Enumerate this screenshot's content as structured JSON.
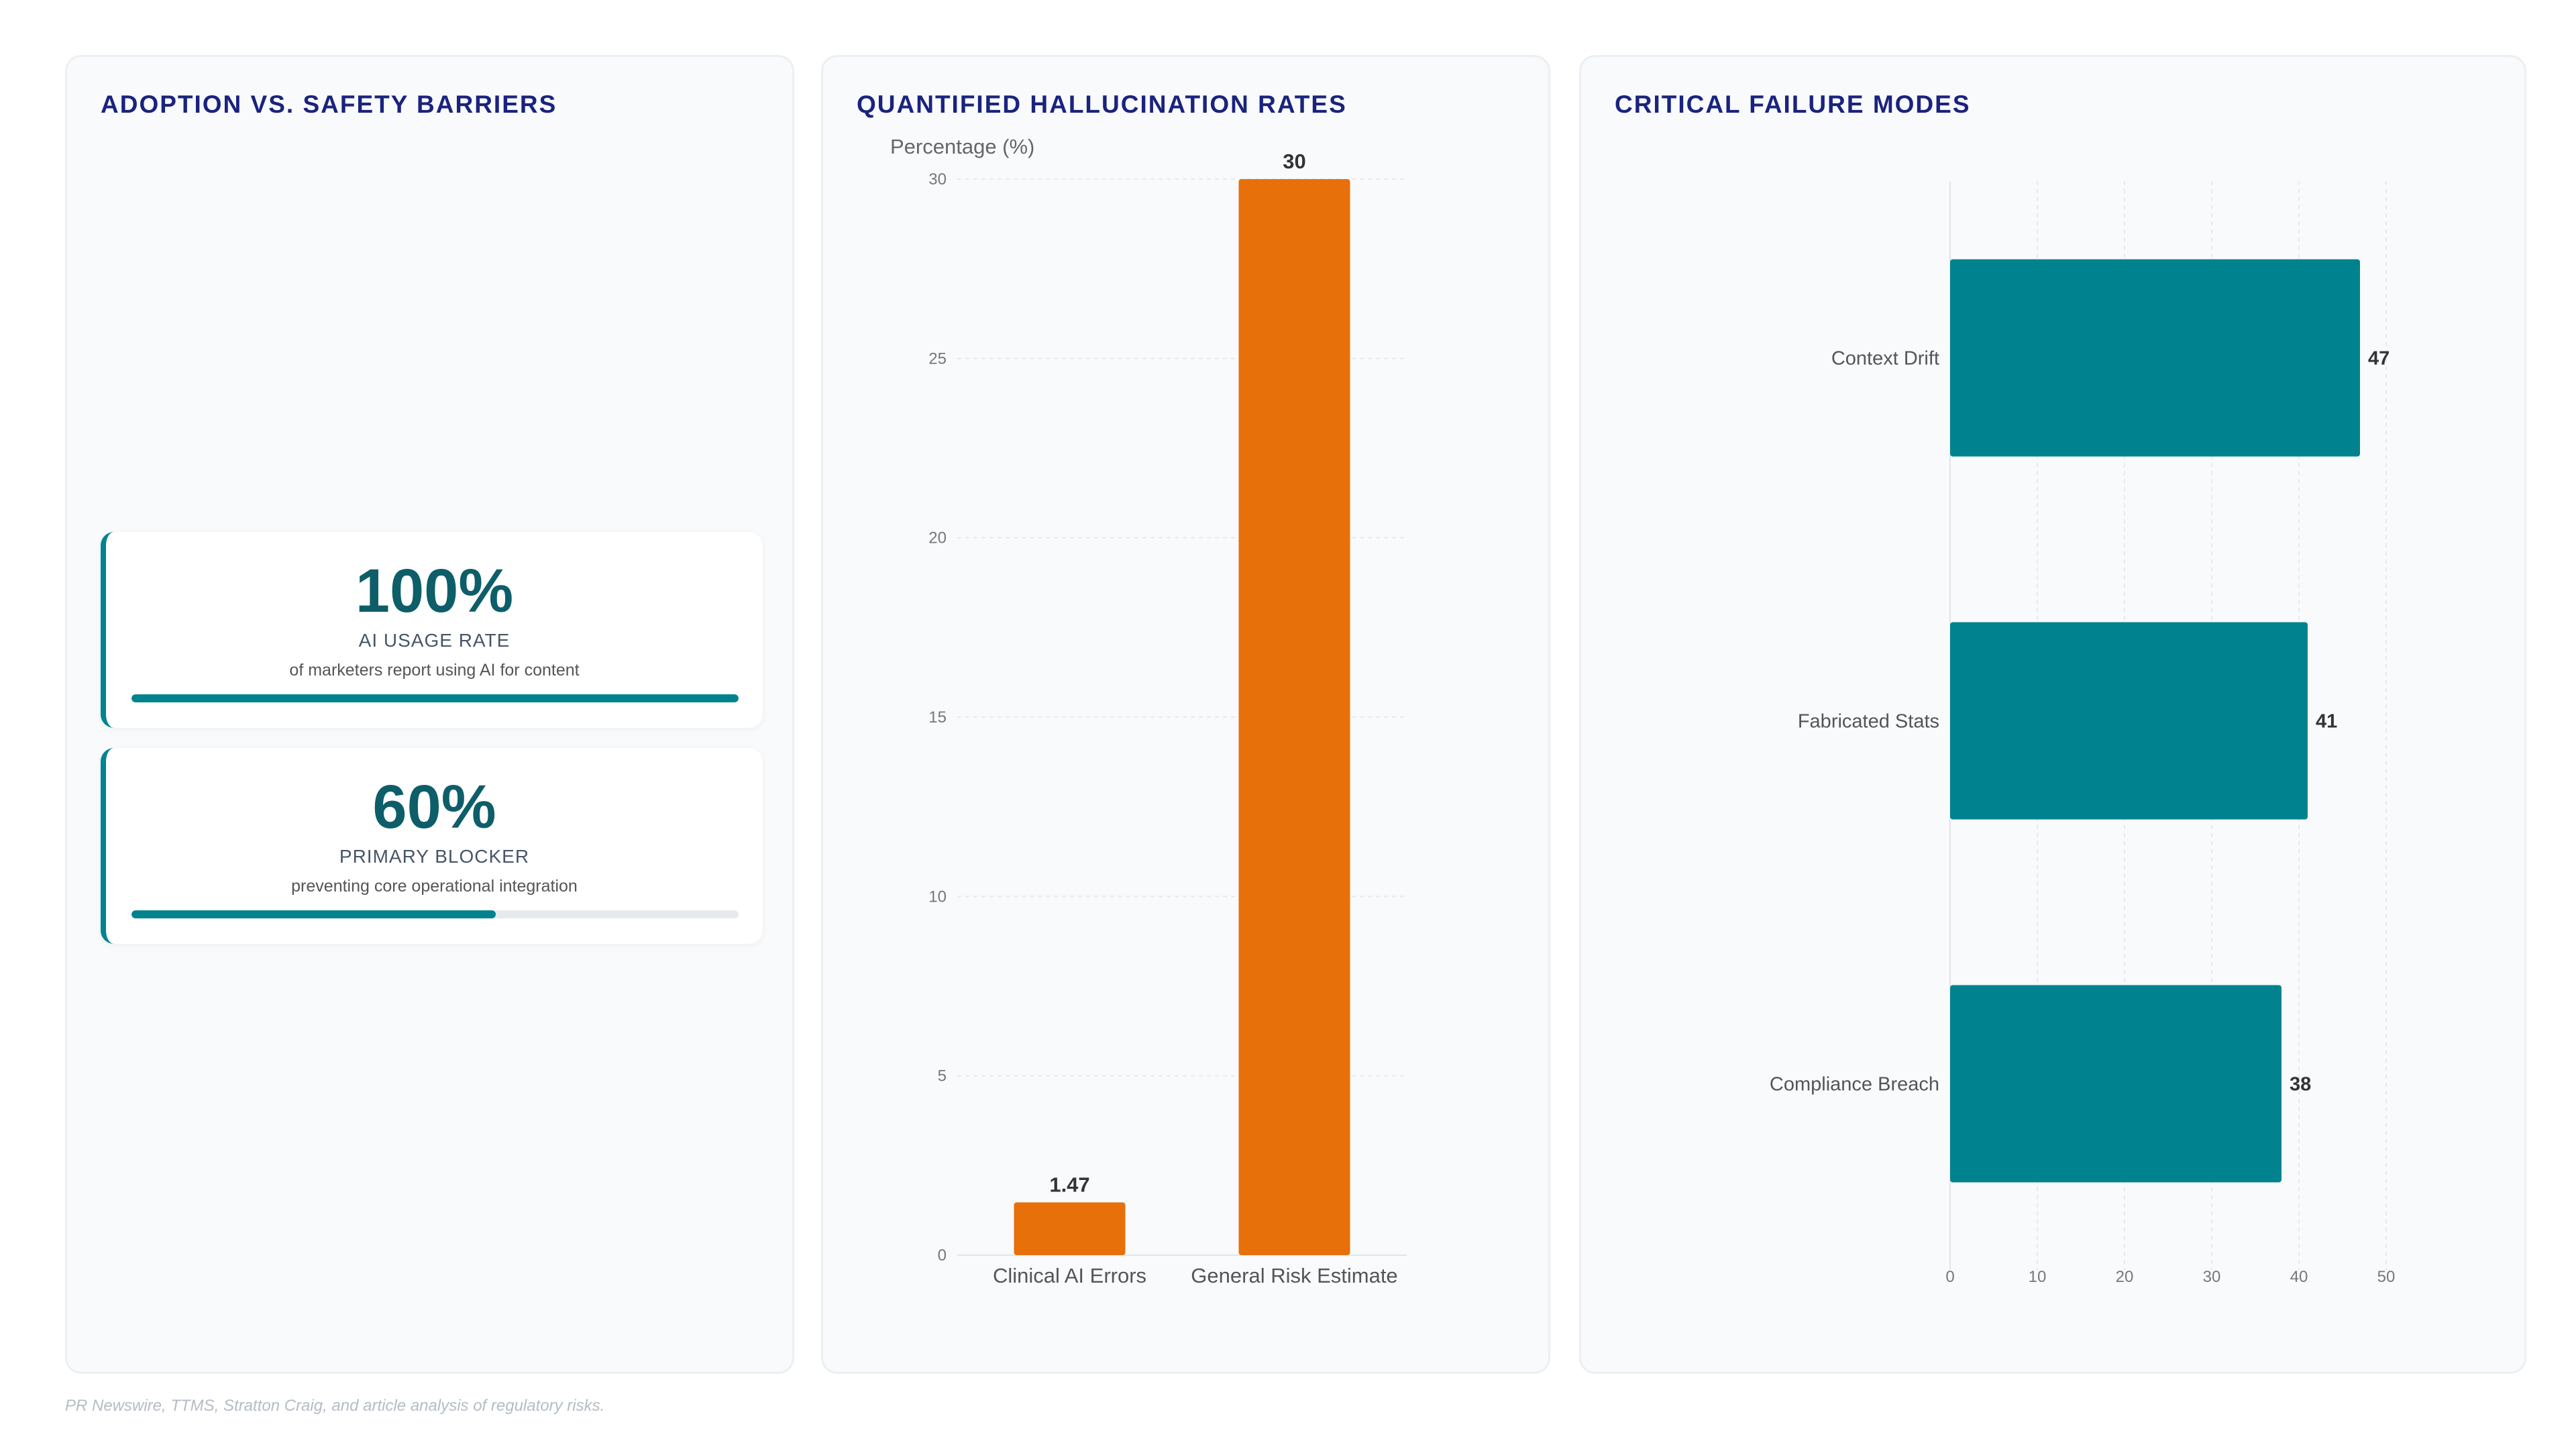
{
  "panels": {
    "adoption": {
      "title": "ADOPTION VS. SAFETY BARRIERS"
    },
    "hallucination": {
      "title": "QUANTIFIED HALLUCINATION RATES"
    },
    "failure": {
      "title": "CRITICAL FAILURE MODES"
    }
  },
  "stats": [
    {
      "value": "100%",
      "label": "AI USAGE RATE",
      "description": "of marketers report using AI for content",
      "progress": 1.0
    },
    {
      "value": "60%",
      "label": "PRIMARY BLOCKER",
      "description": "preventing core operational integration",
      "progress": 0.6
    }
  ],
  "colors": {
    "accent": "#00838f",
    "accent_dark": "#0d5e69",
    "orange": "#e8700a",
    "title": "#1a237e"
  },
  "chart_data": [
    {
      "type": "bar",
      "title": "QUANTIFIED HALLUCINATION RATES",
      "ylabel": "Percentage (%)",
      "categories": [
        "Clinical AI Errors",
        "General Risk Estimate"
      ],
      "values": [
        1.47,
        30
      ],
      "value_labels": [
        "1.47",
        "30"
      ],
      "ylim": [
        0,
        30
      ],
      "yticks": [
        0,
        5,
        10,
        15,
        20,
        25,
        30
      ],
      "color": "#e8700a",
      "grid": true
    },
    {
      "type": "bar",
      "orientation": "horizontal",
      "title": "CRITICAL FAILURE MODES",
      "categories": [
        "Context Drift",
        "Fabricated Stats",
        "Compliance Breach"
      ],
      "values": [
        47,
        41,
        38
      ],
      "xlim": [
        0,
        50
      ],
      "xticks": [
        0,
        10,
        20,
        30,
        40,
        50
      ],
      "color": "#00838f",
      "grid": true
    }
  ],
  "footer": {
    "source": "PR Newswire, TTMS, Stratton Craig, and article analysis of regulatory risks."
  }
}
